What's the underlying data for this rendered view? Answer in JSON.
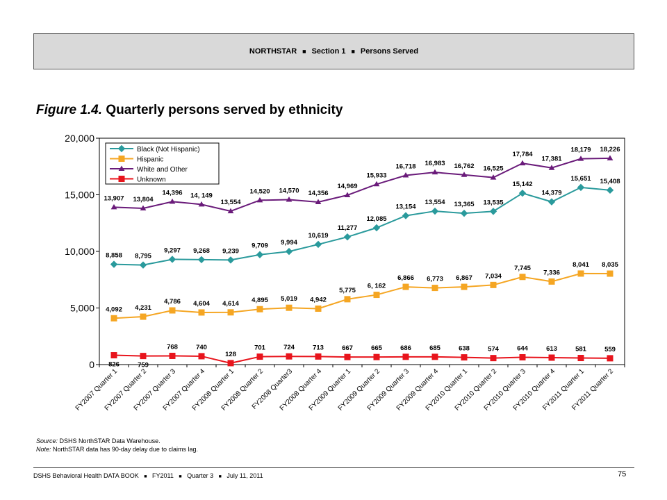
{
  "header": {
    "part1": "NORTHSTAR",
    "part2": "Section 1",
    "part3": "Persons Served",
    "separator": "■"
  },
  "figure": {
    "label": "Figure 1.4.",
    "title": "Quarterly persons served by ethnicity"
  },
  "notes": {
    "source_label": "Source:",
    "source_text": " DSHS NorthSTAR Data Warehouse.",
    "note_label": "Note:",
    "note_text": " NorthSTAR data has 90-day delay due to claims lag."
  },
  "footer": {
    "part1": "DSHS Behavioral Health DATA BOOK",
    "part2": "FY2011",
    "part3": "Quarter 3",
    "part4": "July 11, 2011",
    "separator": "■",
    "page_number": "75"
  },
  "chart_data": {
    "type": "line",
    "title": "",
    "xlabel": "",
    "ylabel": "",
    "ylim": [
      0,
      20000
    ],
    "yticks": [
      "0",
      "5,000",
      "10,000",
      "15,000",
      "20,000"
    ],
    "grid": false,
    "legend_position": "top-left",
    "categories": [
      "FY2007 Quarter 1",
      "FY2007 Quarter 2",
      "FY2007 Quarter 3",
      "FY2007 Quarter 4",
      "FY2008 Quarter 1",
      "FY2008 Quarter 2",
      "FY2008 Quarter3",
      "FY2008 Quarter 4",
      "FY2009 Quarter 1",
      "FY2009 Quarter 2",
      "FY2009 Quarter 3",
      "FY2009 Quarter 4",
      "FY2010 Quarter 1",
      "FY2010 Quarter 2",
      "FY2010 Quarter 3",
      "FY2010 Quarter 4",
      "FY2011 Quarter 1",
      "FY2011 Quarter 2"
    ],
    "series": [
      {
        "name": "Black (Not Hispanic)",
        "color": "#2a9a9c",
        "marker": "diamond",
        "values": [
          8858,
          8795,
          9297,
          9268,
          9239,
          9709,
          9994,
          10619,
          11277,
          12085,
          13154,
          13554,
          13365,
          13535,
          15142,
          14379,
          15651,
          15408
        ],
        "labels": [
          "8,858",
          "8,795",
          "9,297",
          "9,268",
          "9,239",
          "9,709",
          "9,994",
          "10,619",
          "11,277",
          "12,085",
          "13,154",
          "13,554",
          "13,365",
          "13,535",
          "15,142",
          "14,379",
          "15,651",
          "15,408"
        ]
      },
      {
        "name": "Hispanic",
        "color": "#f5a623",
        "marker": "square",
        "values": [
          4092,
          4231,
          4786,
          4604,
          4614,
          4895,
          5019,
          4942,
          5775,
          6162,
          6866,
          6773,
          6867,
          7034,
          7745,
          7336,
          8041,
          8035
        ],
        "labels": [
          "4,092",
          "4,231",
          "4,786",
          "4,604",
          "4,614",
          "4,895",
          "5,019",
          "4,942",
          "5,775",
          "6, 162",
          "6,866",
          "6,773",
          "6,867",
          "7,034",
          "7,745",
          "7,336",
          "8,041",
          "8,035"
        ]
      },
      {
        "name": "White and Other",
        "color": "#6a1b7a",
        "marker": "triangle",
        "values": [
          13907,
          13804,
          14396,
          14149,
          13554,
          14520,
          14570,
          14356,
          14969,
          15933,
          16718,
          16983,
          16762,
          16525,
          17784,
          17381,
          18179,
          18226
        ],
        "labels": [
          "13,907",
          "13,804",
          "14,396",
          "14, 149",
          "13,554",
          "14,520",
          "14,570",
          "14,356",
          "14,969",
          "15,933",
          "16,718",
          "16,983",
          "16,762",
          "16,525",
          "17,784",
          "17,381",
          "18,179",
          "18,226"
        ]
      },
      {
        "name": "Unknown",
        "color": "#e8141c",
        "marker": "square",
        "values": [
          826,
          759,
          768,
          740,
          128,
          701,
          724,
          713,
          667,
          665,
          686,
          685,
          638,
          574,
          644,
          613,
          581,
          559
        ],
        "labels": [
          "826",
          "759",
          "768",
          "740",
          "128",
          "701",
          "724",
          "713",
          "667",
          "665",
          "686",
          "685",
          "638",
          "574",
          "644",
          "613",
          "581",
          "559"
        ]
      }
    ]
  }
}
